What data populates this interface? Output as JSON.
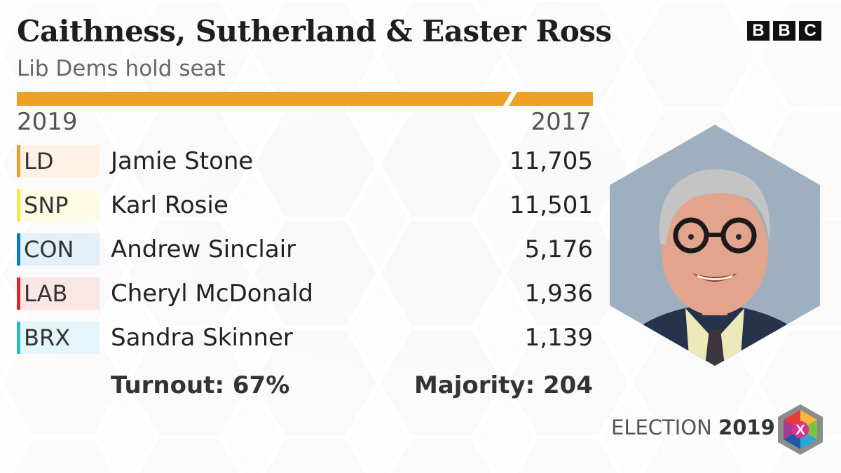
{
  "header": {
    "title": "Caithness, Sutherland & Easter Ross",
    "subtitle": "Lib Dems hold seat"
  },
  "brand": {
    "logo_letters": [
      "B",
      "B",
      "C"
    ]
  },
  "columns": {
    "current_year": "2019",
    "previous_year": "2017"
  },
  "bar_color": "#eca024",
  "results": [
    {
      "party": "LD",
      "candidate": "Jamie Stone",
      "votes": "11,705",
      "color": "#eca024",
      "tint": "#fdf2e3"
    },
    {
      "party": "SNP",
      "candidate": "Karl Rosie",
      "votes": "11,501",
      "color": "#f6e545",
      "tint": "#fdfbe4"
    },
    {
      "party": "CON",
      "candidate": "Andrew Sinclair",
      "votes": "5,176",
      "color": "#0a7ec4",
      "tint": "#e4f0f9"
    },
    {
      "party": "LAB",
      "candidate": "Cheryl McDonald",
      "votes": "1,936",
      "color": "#e02428",
      "tint": "#fbe6e6"
    },
    {
      "party": "BRX",
      "candidate": "Sandra Skinner",
      "votes": "1,139",
      "color": "#25bcd2",
      "tint": "#e4f6f9"
    }
  ],
  "footer": {
    "turnout": "Turnout: 67%",
    "majority": "Majority: 204"
  },
  "election_brand": {
    "label": "ELECTION",
    "year": "2019",
    "mark": "X"
  }
}
